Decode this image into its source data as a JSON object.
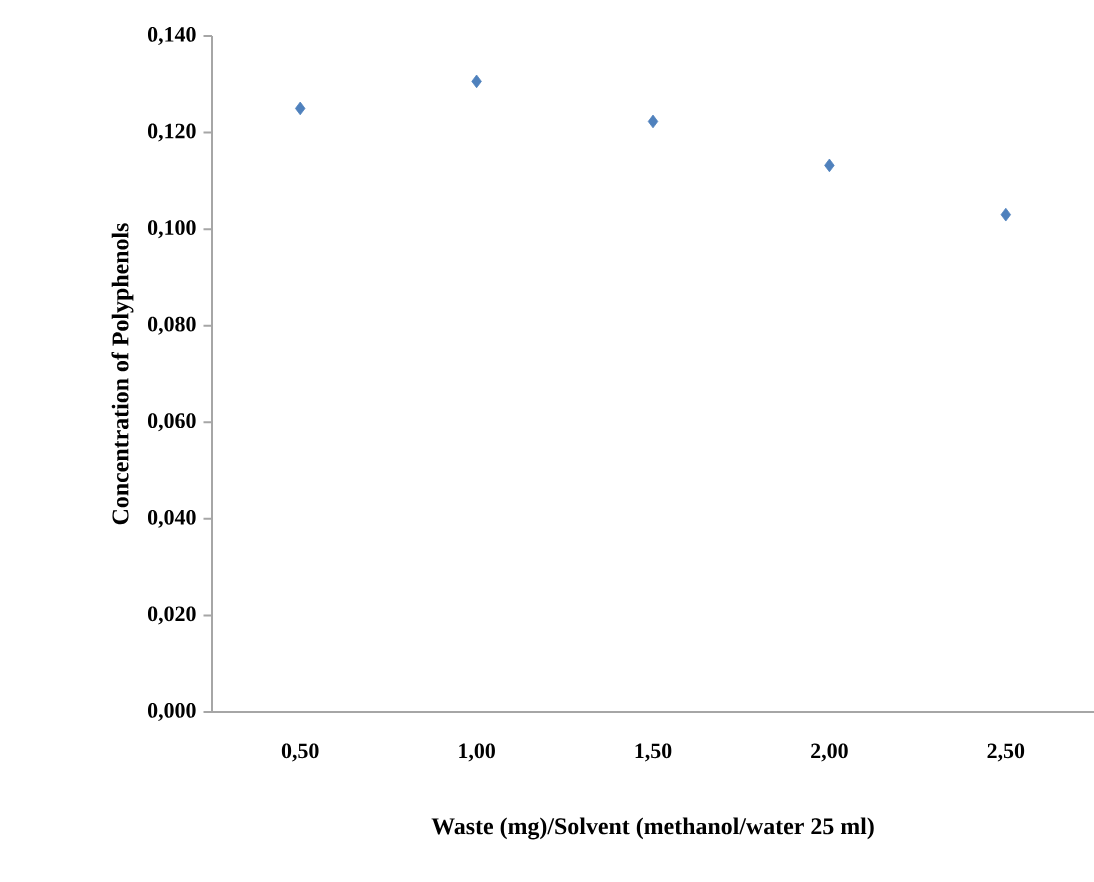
{
  "chart_data": {
    "type": "scatter",
    "xlabel": "Waste (mg)/Solvent (methanol/water  25 ml)",
    "ylabel": "Concentration of Polyphenols",
    "categories": [
      "0,50",
      "1,00",
      "1,50",
      "2,00",
      "2,50"
    ],
    "series": [
      {
        "color": "#4f81bd",
        "values": [
          0.125,
          0.1306,
          0.1223,
          0.1132,
          0.103
        ]
      }
    ],
    "ylim": [
      0,
      0.14
    ],
    "yticks": [
      {
        "value": 0,
        "label": "0,000"
      },
      {
        "value": 0.02,
        "label": "0,020"
      },
      {
        "value": 0.04,
        "label": "0,040"
      },
      {
        "value": 0.06,
        "label": "0,060"
      },
      {
        "value": 0.08,
        "label": "0,080"
      },
      {
        "value": 0.1,
        "label": "0,100"
      },
      {
        "value": 0.12,
        "label": "0,120"
      },
      {
        "value": 0.14,
        "label": "0,140"
      }
    ],
    "marker": "diamond",
    "grid": false
  }
}
